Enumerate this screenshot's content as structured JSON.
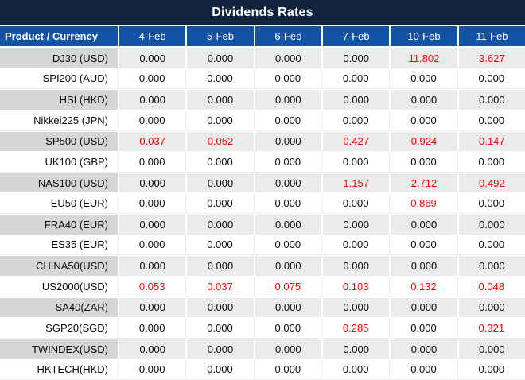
{
  "title": "Dividends Rates",
  "colors": {
    "title_bg": "#12233F",
    "header_bg": "#1253A6",
    "label_alt_bg": "#D6D6D6",
    "value_alt_bg": "#EBEBEB",
    "red_value": "#FF0000",
    "text": "#0A0A0A"
  },
  "chart_data": {
    "type": "table",
    "title": "Dividends Rates",
    "product_header": "Product / Currency",
    "columns": [
      "4-Feb",
      "5-Feb",
      "6-Feb",
      "7-Feb",
      "10-Feb",
      "11-Feb"
    ],
    "rows": [
      {
        "product": "DJ30 (USD)",
        "values": [
          "0.000",
          "0.000",
          "0.000",
          "0.000",
          "11.802",
          "3.627"
        ],
        "red": [
          false,
          false,
          false,
          false,
          true,
          true
        ]
      },
      {
        "product": "SPI200 (AUD)",
        "values": [
          "0.000",
          "0.000",
          "0.000",
          "0.000",
          "0.000",
          "0.000"
        ],
        "red": [
          false,
          false,
          false,
          false,
          false,
          false
        ]
      },
      {
        "product": "HSI (HKD)",
        "values": [
          "0.000",
          "0.000",
          "0.000",
          "0.000",
          "0.000",
          "0.000"
        ],
        "red": [
          false,
          false,
          false,
          false,
          false,
          false
        ]
      },
      {
        "product": "Nikkei225 (JPN)",
        "values": [
          "0.000",
          "0.000",
          "0.000",
          "0.000",
          "0.000",
          "0.000"
        ],
        "red": [
          false,
          false,
          false,
          false,
          false,
          false
        ]
      },
      {
        "product": "SP500 (USD)",
        "values": [
          "0.037",
          "0.052",
          "0.000",
          "0.427",
          "0.924",
          "0.147"
        ],
        "red": [
          true,
          true,
          false,
          true,
          true,
          true
        ]
      },
      {
        "product": "UK100 (GBP)",
        "values": [
          "0.000",
          "0.000",
          "0.000",
          "0.000",
          "0.000",
          "0.000"
        ],
        "red": [
          false,
          false,
          false,
          false,
          false,
          false
        ]
      },
      {
        "product": "NAS100 (USD)",
        "values": [
          "0.000",
          "0.000",
          "0.000",
          "1.157",
          "2.712",
          "0.492"
        ],
        "red": [
          false,
          false,
          false,
          true,
          true,
          true
        ]
      },
      {
        "product": "EU50 (EUR)",
        "values": [
          "0.000",
          "0.000",
          "0.000",
          "0.000",
          "0.869",
          "0.000"
        ],
        "red": [
          false,
          false,
          false,
          false,
          true,
          false
        ]
      },
      {
        "product": "FRA40 (EUR)",
        "values": [
          "0.000",
          "0.000",
          "0.000",
          "0.000",
          "0.000",
          "0.000"
        ],
        "red": [
          false,
          false,
          false,
          false,
          false,
          false
        ]
      },
      {
        "product": "ES35 (EUR)",
        "values": [
          "0.000",
          "0.000",
          "0.000",
          "0.000",
          "0.000",
          "0.000"
        ],
        "red": [
          false,
          false,
          false,
          false,
          false,
          false
        ]
      },
      {
        "product": "CHINA50(USD)",
        "values": [
          "0.000",
          "0.000",
          "0.000",
          "0.000",
          "0.000",
          "0.000"
        ],
        "red": [
          false,
          false,
          false,
          false,
          false,
          false
        ]
      },
      {
        "product": "US2000(USD)",
        "values": [
          "0.053",
          "0.037",
          "0.075",
          "0.103",
          "0.132",
          "0.048"
        ],
        "red": [
          true,
          true,
          true,
          true,
          true,
          true
        ]
      },
      {
        "product": "SA40(ZAR)",
        "values": [
          "0.000",
          "0.000",
          "0.000",
          "0.000",
          "0.000",
          "0.000"
        ],
        "red": [
          false,
          false,
          false,
          false,
          false,
          false
        ]
      },
      {
        "product": "SGP20(SGD)",
        "values": [
          "0.000",
          "0.000",
          "0.000",
          "0.285",
          "0.000",
          "0.321"
        ],
        "red": [
          false,
          false,
          false,
          true,
          false,
          true
        ]
      },
      {
        "product": "TWINDEX(USD)",
        "values": [
          "0.000",
          "0.000",
          "0.000",
          "0.000",
          "0.000",
          "0.000"
        ],
        "red": [
          false,
          false,
          false,
          false,
          false,
          false
        ]
      },
      {
        "product": "HKTECH(HKD)",
        "values": [
          "0.000",
          "0.000",
          "0.000",
          "0.000",
          "0.000",
          "0.000"
        ],
        "red": [
          false,
          false,
          false,
          false,
          false,
          false
        ]
      }
    ]
  }
}
